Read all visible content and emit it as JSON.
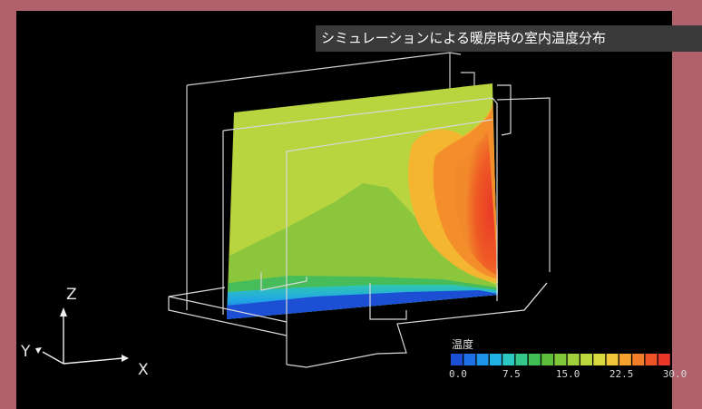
{
  "caption": "シミュレーションによる暖房時の室内温度分布",
  "axes": {
    "z": "Z",
    "y": "Y",
    "x": "X"
  },
  "legend": {
    "title": "温度",
    "ticks": [
      "0.0",
      "7.5",
      "15.0",
      "22.5",
      "30.0"
    ],
    "colors": [
      "#1b4fd6",
      "#1f6fe6",
      "#1f93ea",
      "#22b3e6",
      "#2cc9c3",
      "#33c88a",
      "#41bf55",
      "#5cbf3c",
      "#80c739",
      "#9fd03c",
      "#bcd63f",
      "#d8d83f",
      "#f0c53a",
      "#f6a12f",
      "#f47d2a",
      "#ef5426",
      "#e8362a"
    ]
  }
}
